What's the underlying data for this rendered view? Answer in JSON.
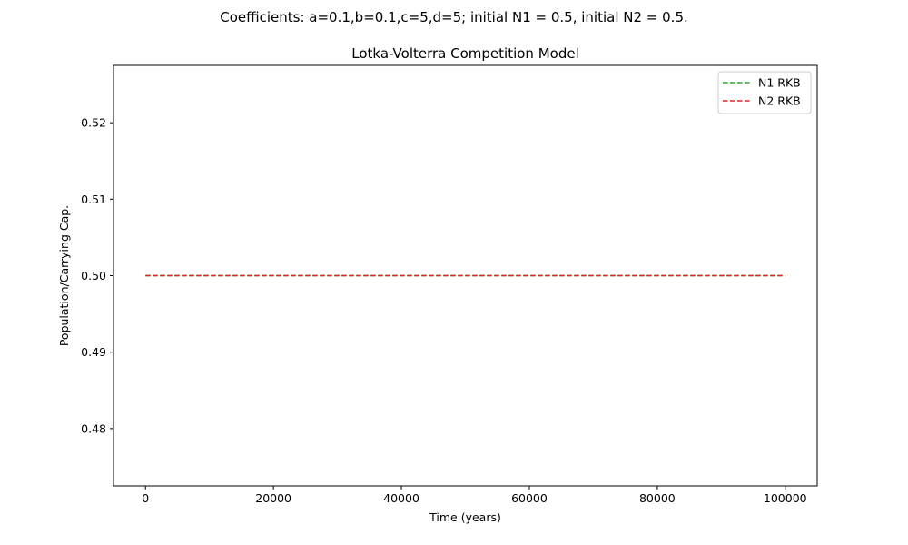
{
  "figure": {
    "suptitle": "Coefficients: a=0.1,b=0.1,c=5,d=5; initial N1 = 0.5, initial N2 = 0.5."
  },
  "chart_data": {
    "type": "line",
    "title": "Lotka-Volterra Competition Model",
    "xlabel": "Time (years)",
    "ylabel": "Population/Carrying Cap.",
    "xlim": [
      -5000,
      105000
    ],
    "ylim": [
      0.4725,
      0.5275
    ],
    "xticks": [
      0,
      20000,
      40000,
      60000,
      80000,
      100000
    ],
    "xtick_labels": [
      "0",
      "20000",
      "40000",
      "60000",
      "80000",
      "100000"
    ],
    "yticks": [
      0.48,
      0.49,
      0.5,
      0.51,
      0.52
    ],
    "ytick_labels": [
      "0.48",
      "0.49",
      "0.50",
      "0.51",
      "0.52"
    ],
    "grid": false,
    "legend_position": "top-right",
    "series": [
      {
        "name": "N1 RKB",
        "color": "#2ca02c",
        "style": "dashed",
        "x": [
          0,
          100000
        ],
        "y": [
          0.5,
          0.5
        ]
      },
      {
        "name": "N2 RKB",
        "color": "#d62728",
        "style": "dashed",
        "x": [
          0,
          100000
        ],
        "y": [
          0.5,
          0.5
        ]
      }
    ]
  }
}
